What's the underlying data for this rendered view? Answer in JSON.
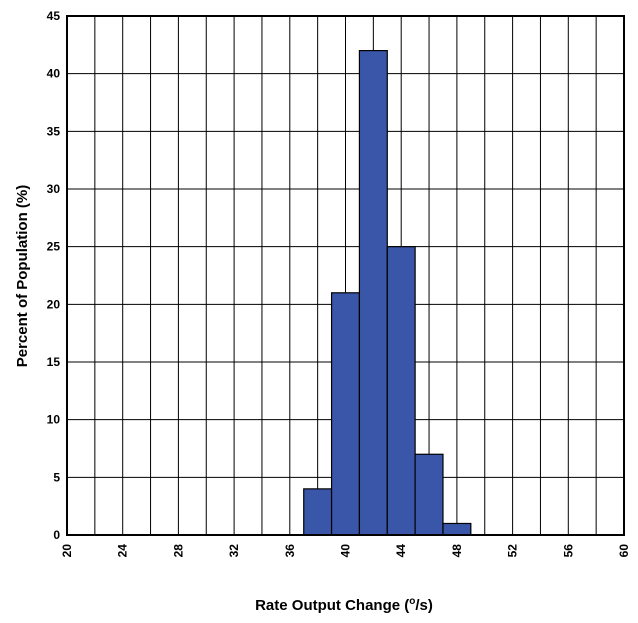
{
  "chart_data": {
    "type": "bar",
    "title": "",
    "xlabel": "Rate Output Change (",
    "xlabel_sup": "o",
    "xlabel_tail": "/s)",
    "ylabel": "Percent of Population (%)",
    "xlim": [
      20,
      60
    ],
    "ylim": [
      0,
      45
    ],
    "grid": true,
    "bar_color": "#3a56a8",
    "x_ticks": [
      20,
      24,
      28,
      32,
      36,
      40,
      44,
      48,
      52,
      56,
      60
    ],
    "x_tick_labels": [
      "20",
      "24",
      "28",
      "32",
      "36",
      "40",
      "44",
      "48",
      "52",
      "56",
      "60"
    ],
    "y_ticks": [
      0,
      5,
      10,
      15,
      20,
      25,
      30,
      35,
      40,
      45
    ],
    "y_tick_labels": [
      "0",
      "5",
      "10",
      "15",
      "20",
      "25",
      "30",
      "35",
      "40",
      "45"
    ],
    "bin_width": 2,
    "bins": [
      {
        "start": 37,
        "end": 39,
        "value": 4
      },
      {
        "start": 39,
        "end": 41,
        "value": 21
      },
      {
        "start": 41,
        "end": 43,
        "value": 42
      },
      {
        "start": 43,
        "end": 45,
        "value": 25
      },
      {
        "start": 45,
        "end": 47,
        "value": 7
      },
      {
        "start": 47,
        "end": 49,
        "value": 1
      }
    ]
  }
}
